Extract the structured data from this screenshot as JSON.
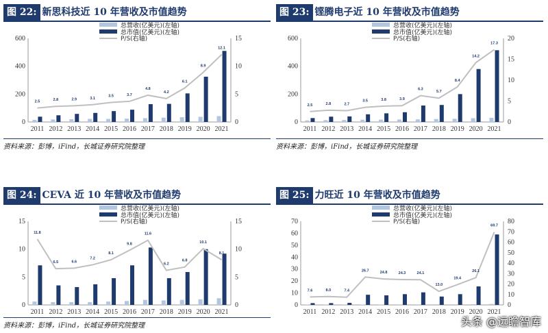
{
  "watermark": "头条 @远瞻智库",
  "legend_labels": {
    "rev": "总营收(亿美元)(左轴)",
    "cap": "总市值(亿美元)(左轴)",
    "ps": "P/S(右轴)"
  },
  "colors": {
    "rev": "#b3c6e0",
    "cap": "#1f3b6e",
    "ps": "#bfbfbf",
    "axis": "#999999"
  },
  "chart_data": [
    {
      "type": "bar",
      "label": "图 22:",
      "title": "新思科技近 10 年营收及市值趋势",
      "source": "资料来源：彭博，iFind，长城证券研究院整理",
      "categories": [
        "2011",
        "2012",
        "2013",
        "2014",
        "2015",
        "2016",
        "2017",
        "2018",
        "2019",
        "2020",
        "2021"
      ],
      "series": [
        {
          "name": "总营收(亿美元)(左轴)",
          "axis": "left",
          "values": [
            15,
            18,
            20,
            22,
            22,
            24,
            27,
            31,
            34,
            37,
            42
          ]
        },
        {
          "name": "总市值(亿美元)(左轴)",
          "axis": "left",
          "values": [
            38,
            48,
            58,
            65,
            78,
            88,
            128,
            130,
            205,
            325,
            510
          ]
        },
        {
          "name": "P/S(右轴)",
          "axis": "right",
          "values": [
            2.5,
            2.8,
            2.9,
            3.1,
            3.5,
            3.7,
            4.8,
            4.2,
            6.1,
            8.9,
            12.1
          ],
          "labels": [
            "2.5",
            "2.8",
            "2.9",
            "3.1",
            "3.5",
            "3.7",
            "4.8",
            "4.2",
            "6.1",
            "8.9",
            "12.1"
          ]
        }
      ],
      "yleft": {
        "min": 0,
        "max": 600,
        "ticks": [
          0,
          200,
          400,
          600
        ]
      },
      "yright": {
        "min": 0,
        "max": 15,
        "ticks": [
          0,
          5,
          10,
          15
        ]
      }
    },
    {
      "type": "bar",
      "label": "图 23:",
      "title": "铿腾电子近 10 年营收及市值趋势",
      "source": "资料来源：彭博，iFind，长城证券研究院整理",
      "categories": [
        "2011",
        "2012",
        "2013",
        "2014",
        "2015",
        "2016",
        "2017",
        "2018",
        "2019",
        "2020",
        "2021"
      ],
      "series": [
        {
          "name": "总营收(亿美元)(左轴)",
          "axis": "left",
          "values": [
            11,
            13,
            14,
            16,
            17,
            18,
            19,
            21,
            23,
            27,
            30
          ]
        },
        {
          "name": "总市值(亿美元)(左轴)",
          "axis": "left",
          "values": [
            28,
            38,
            40,
            55,
            62,
            70,
            118,
            122,
            200,
            380,
            515
          ]
        },
        {
          "name": "P/S(右轴)",
          "axis": "right",
          "values": [
            2.5,
            2.8,
            2.7,
            3.5,
            3.8,
            3.9,
            6.3,
            5.7,
            8.4,
            14.2,
            17.3
          ],
          "labels": [
            "2.5",
            "2.8",
            "2.7",
            "3.5",
            "3.8",
            "3.9",
            "6.3",
            "5.7",
            "8.4",
            "14.2",
            "17.3"
          ]
        }
      ],
      "yleft": {
        "min": 0,
        "max": 600,
        "ticks": [
          0,
          200,
          400,
          600
        ]
      },
      "yright": {
        "min": 0,
        "max": 20,
        "ticks": [
          0,
          5,
          10,
          15,
          20
        ]
      }
    },
    {
      "type": "bar",
      "label": "图 24:",
      "title": "CEVA 近 10 年营收及市值趋势",
      "source": "资料来源：彭博，iFind，长城证券研究院整理",
      "categories": [
        "2011",
        "2012",
        "2013",
        "2014",
        "2015",
        "2016",
        "2017",
        "2018",
        "2019",
        "2020",
        "2021"
      ],
      "series": [
        {
          "name": "总营收(亿美元)(左轴)",
          "axis": "left",
          "values": [
            0.6,
            0.5,
            0.5,
            0.5,
            0.6,
            0.7,
            0.9,
            0.8,
            0.9,
            1.0,
            1.2
          ]
        },
        {
          "name": "总市值(亿美元)(左轴)",
          "axis": "left",
          "values": [
            7.1,
            3.5,
            3.2,
            3.7,
            4.8,
            7.1,
            10.3,
            4.8,
            5.9,
            10.0,
            9.2
          ]
        },
        {
          "name": "P/S(右轴)",
          "axis": "right",
          "values": [
            11.8,
            6.5,
            6.6,
            7.2,
            8.1,
            9.8,
            11.6,
            6.2,
            6.8,
            10.1,
            8.1
          ],
          "labels": [
            "11.8",
            "6.5",
            "6.6",
            "7.2",
            "8.1",
            "9.8",
            "11.6",
            "6.2",
            "6.8",
            "10.1",
            "8.1"
          ]
        }
      ],
      "yleft": {
        "min": 0,
        "max": 15,
        "ticks": [
          0,
          5,
          10,
          15
        ]
      },
      "yright": {
        "min": 0,
        "max": 15,
        "ticks": [
          0,
          5,
          10,
          15
        ]
      }
    },
    {
      "type": "bar",
      "label": "图 25:",
      "title": "力旺近 10 年营收及市值趋势",
      "source": "资料来源：彭博，iFind，长城证券研究院整理",
      "categories": [
        "2011",
        "2012",
        "2013",
        "2014",
        "2015",
        "2016",
        "2017",
        "2018",
        "2019",
        "2020",
        "2021"
      ],
      "series": [
        {
          "name": "总营收(亿美元)(左轴)",
          "axis": "left",
          "values": [
            0.2,
            0.2,
            0.2,
            0.3,
            0.3,
            0.4,
            0.4,
            0.5,
            0.5,
            0.6,
            0.8
          ]
        },
        {
          "name": "总市值(亿美元)(左轴)",
          "axis": "left",
          "values": [
            1.5,
            1.5,
            1.7,
            8.5,
            8.0,
            9.0,
            10.5,
            7.0,
            9.0,
            15.5,
            59.0
          ]
        },
        {
          "name": "P/S(右轴)",
          "axis": "right",
          "values": [
            7.6,
            8.0,
            7.4,
            26.7,
            24.8,
            24.3,
            24.1,
            13.0,
            19.4,
            26.1,
            69.7
          ],
          "labels": [
            "7.6",
            "8.0",
            "7.4",
            "26.7",
            "24.8",
            "24.3",
            "24.1",
            "13.0",
            "19.4",
            "26.1",
            "69.7"
          ]
        }
      ],
      "yleft": {
        "min": 0,
        "max": 70,
        "ticks": [
          0,
          10,
          20,
          30,
          40,
          50,
          60,
          70
        ]
      },
      "yright": {
        "min": 0,
        "max": 80,
        "ticks": [
          0,
          10,
          20,
          30,
          40,
          50,
          60,
          70,
          80
        ]
      }
    }
  ]
}
